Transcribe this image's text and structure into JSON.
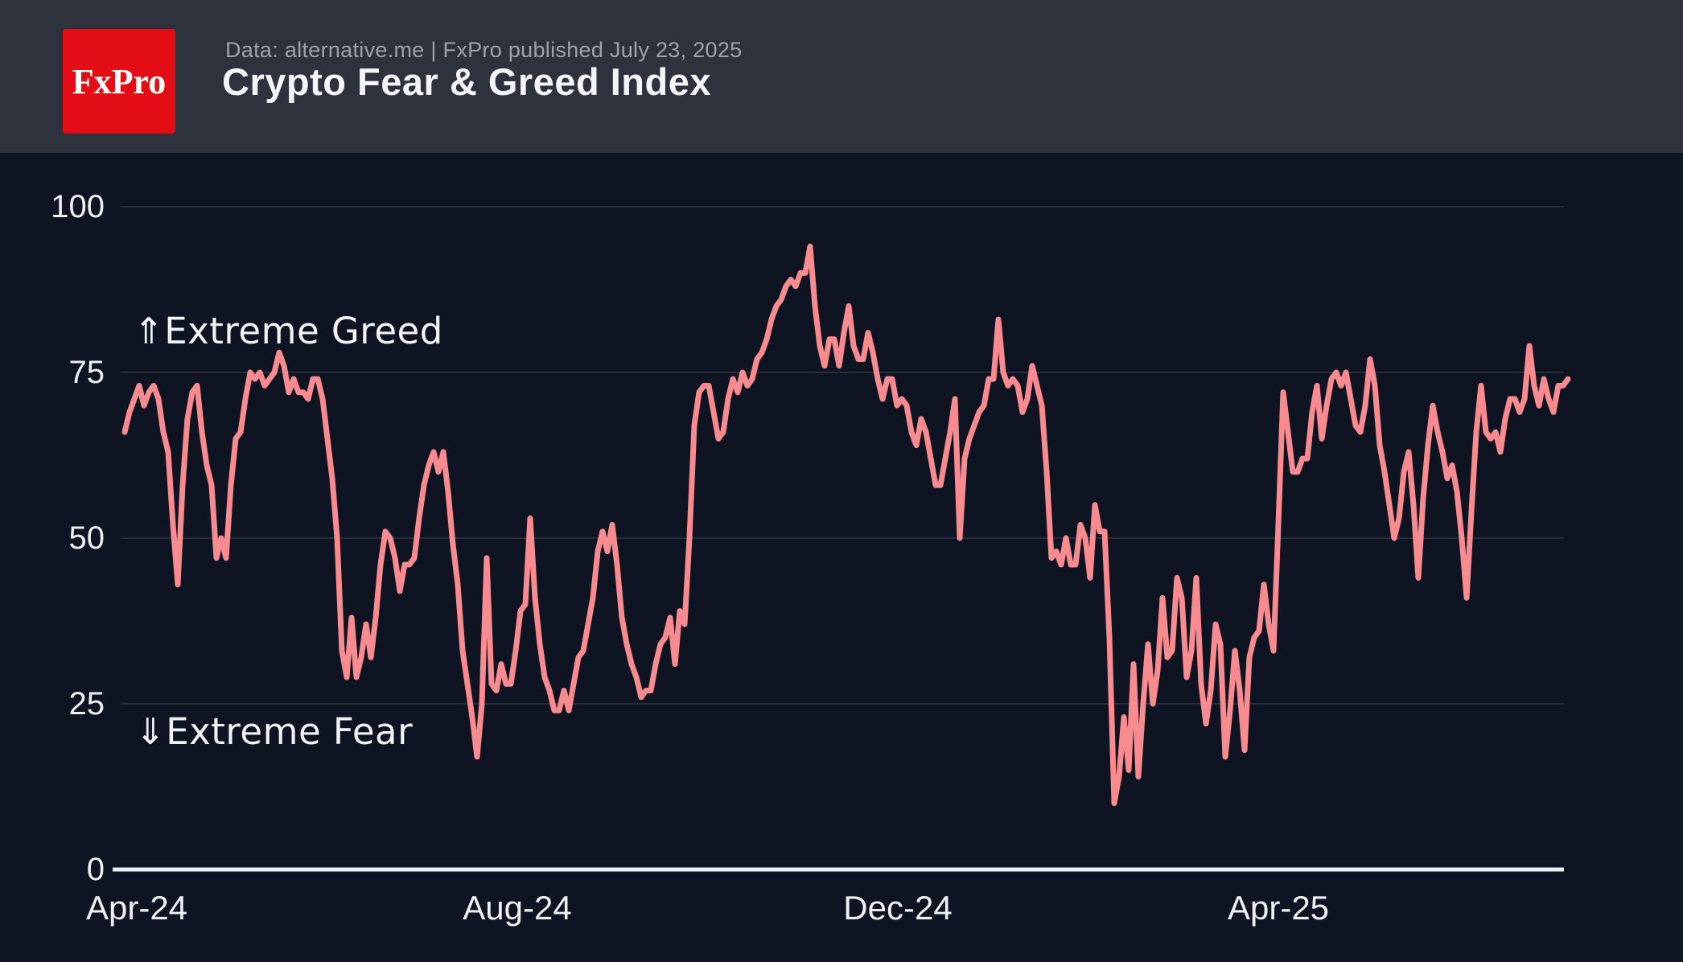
{
  "header": {
    "logo_text": "FxPro",
    "source_line": "Data: alternative.me | FxPro published July 23, 2025",
    "title": "Crypto Fear & Greed Index"
  },
  "colors": {
    "page_background": "#0f1422",
    "header_background": "#2e323d",
    "logo_red": "#e30d15",
    "line": "#f78b8f",
    "gridline": "#272c37",
    "axis_line": "#eceef2",
    "text_bright": "#eef0f4",
    "text_muted": "#9fa2ab"
  },
  "chart_data": {
    "type": "line",
    "title": "Crypto Fear & Greed Index",
    "xlabel": "",
    "ylabel": "",
    "ylim": [
      0,
      100
    ],
    "grid": "horizontal",
    "legend": "none",
    "x_unit": "date",
    "x_range": [
      "2024-04-01",
      "2025-07-23"
    ],
    "points": 300,
    "sampling": "values evenly spaced in time between x_range endpoints (~1.6 days apart)",
    "y_ticks": [
      100,
      75,
      50,
      25,
      0
    ],
    "x_tick_labels": [
      "Apr-24",
      "Aug-24",
      "Dec-24",
      "Apr-25"
    ],
    "annotations": [
      {
        "text": "⇑Extreme Greed",
        "meaning": "region above 75",
        "y_value": 81
      },
      {
        "text": "⇓Extreme Fear",
        "meaning": "region below 25",
        "y_value": 21
      }
    ],
    "series": [
      {
        "name": "Crypto Fear & Greed Index",
        "color": "#f78b8f",
        "values": [
          66,
          69,
          71,
          73,
          70,
          72,
          73,
          71,
          66,
          63,
          52,
          43,
          58,
          68,
          72,
          73,
          66,
          61,
          58,
          47,
          50,
          47,
          58,
          65,
          66,
          71,
          75,
          74,
          75,
          73,
          74,
          75,
          78,
          76,
          72,
          74,
          72,
          72,
          71,
          74,
          74,
          71,
          65,
          59,
          50,
          33,
          29,
          38,
          29,
          32,
          37,
          32,
          38,
          46,
          51,
          50,
          47,
          42,
          46,
          46,
          47,
          53,
          58,
          61,
          63,
          60,
          63,
          57,
          49,
          43,
          33,
          28,
          23,
          17,
          25,
          47,
          28,
          27,
          31,
          28,
          28,
          33,
          39,
          40,
          53,
          41,
          34,
          29,
          27,
          24,
          24,
          27,
          24,
          28,
          32,
          33,
          37,
          41,
          48,
          51,
          48,
          52,
          46,
          38,
          34,
          31,
          29,
          26,
          27,
          27,
          31,
          34,
          35,
          38,
          31,
          39,
          37,
          50,
          67,
          72,
          73,
          73,
          69,
          65,
          66,
          71,
          74,
          72,
          75,
          73,
          74,
          77,
          78,
          80,
          83,
          85,
          86,
          88,
          89,
          88,
          90,
          90,
          94,
          85,
          79,
          76,
          80,
          80,
          76,
          81,
          85,
          79,
          77,
          77,
          81,
          78,
          74,
          71,
          74,
          74,
          70,
          71,
          70,
          66,
          64,
          68,
          66,
          62,
          58,
          58,
          62,
          66,
          71,
          50,
          62,
          65,
          67,
          69,
          70,
          74,
          74,
          83,
          75,
          73,
          74,
          73,
          69,
          71,
          76,
          73,
          70,
          60,
          47,
          48,
          46,
          50,
          46,
          46,
          52,
          50,
          44,
          55,
          51,
          51,
          35,
          10,
          14,
          23,
          15,
          31,
          14,
          25,
          34,
          25,
          30,
          41,
          32,
          33,
          44,
          41,
          29,
          33,
          44,
          28,
          22,
          27,
          37,
          34,
          17,
          24,
          33,
          27,
          18,
          32,
          35,
          36,
          43,
          37,
          33,
          52,
          72,
          66,
          60,
          60,
          62,
          62,
          69,
          73,
          65,
          70,
          74,
          75,
          73,
          75,
          71,
          67,
          66,
          70,
          77,
          73,
          64,
          60,
          55,
          50,
          53,
          60,
          63,
          55,
          44,
          56,
          64,
          70,
          66,
          63,
          59,
          61,
          57,
          50,
          41,
          54,
          66,
          73,
          66,
          65,
          66,
          63,
          68,
          71,
          71,
          69,
          71,
          79,
          73,
          70,
          74,
          71,
          69,
          73,
          73,
          74
        ]
      }
    ]
  }
}
